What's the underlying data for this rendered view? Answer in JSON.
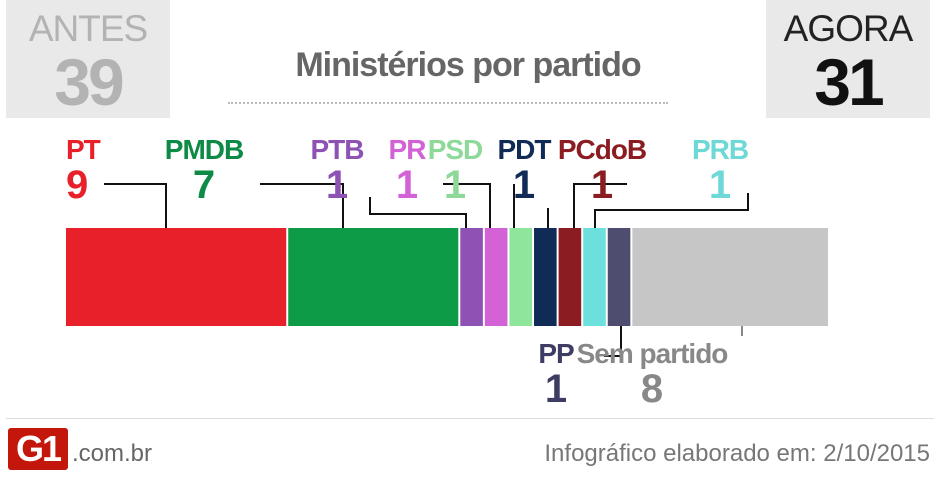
{
  "before": {
    "label": "ANTES",
    "value": "39"
  },
  "now": {
    "label": "AGORA",
    "value": "31"
  },
  "title": "Ministérios por partido",
  "footer": {
    "logo": "G1",
    "domain": ".com.br",
    "credit": "Infográfico elaborado em: 2/10/2015"
  },
  "chart_data": {
    "type": "bar",
    "orientation": "horizontal-stacked",
    "title": "Ministérios por partido",
    "total": 31,
    "categories": [
      "PT",
      "PMDB",
      "PTB",
      "PR",
      "PSD",
      "PDT",
      "PCdoB",
      "PRB",
      "PP",
      "Sem partido"
    ],
    "values": [
      9,
      7,
      1,
      1,
      1,
      1,
      1,
      1,
      1,
      8
    ],
    "colors": [
      "#e8202a",
      "#0d9b48",
      "#8e52b4",
      "#d262d6",
      "#8fe59a",
      "#112b57",
      "#8b1d22",
      "#6de0dd",
      "#4e4d6f",
      "#c6c6c6"
    ],
    "label_colors": [
      "#e8202a",
      "#0d8a45",
      "#8e52b4",
      "#d262d6",
      "#8ed99a",
      "#112b57",
      "#8b1d22",
      "#6dd8d5",
      "#3d3d63",
      "#888888"
    ],
    "label_positions": [
      "top",
      "top",
      "top",
      "top",
      "top",
      "top",
      "top",
      "top",
      "bottom",
      "bottom"
    ]
  }
}
